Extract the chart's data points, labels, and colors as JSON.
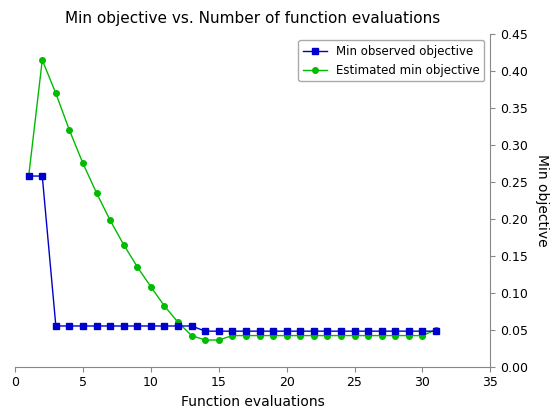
{
  "title": "Min objective vs. Number of function evaluations",
  "xlabel": "Function evaluations",
  "ylabel": "Min objective",
  "xlim": [
    0,
    35
  ],
  "ylim": [
    0,
    0.45
  ],
  "line1_label": "Min observed objective",
  "line1_color": "#0000cd",
  "line1_marker": "s",
  "line1_x": [
    1,
    2,
    3,
    4,
    5,
    6,
    7,
    8,
    9,
    10,
    11,
    12,
    13,
    14,
    15,
    16,
    17,
    18,
    19,
    20,
    21,
    22,
    23,
    24,
    25,
    26,
    27,
    28,
    29,
    30,
    31
  ],
  "line1_y": [
    0.258,
    0.258,
    0.055,
    0.055,
    0.055,
    0.055,
    0.055,
    0.055,
    0.055,
    0.055,
    0.055,
    0.055,
    0.055,
    0.048,
    0.048,
    0.048,
    0.048,
    0.048,
    0.048,
    0.048,
    0.048,
    0.048,
    0.048,
    0.048,
    0.048,
    0.048,
    0.048,
    0.048,
    0.048,
    0.048,
    0.048
  ],
  "line2_label": "Estimated min objective",
  "line2_color": "#00bb00",
  "line2_marker": "o",
  "line2_x": [
    1,
    2,
    3,
    4,
    5,
    6,
    7,
    8,
    9,
    10,
    11,
    12,
    13,
    14,
    15,
    16,
    17,
    18,
    19,
    20,
    21,
    22,
    23,
    24,
    25,
    26,
    27,
    28,
    29,
    30,
    31
  ],
  "line2_y": [
    0.258,
    0.415,
    0.37,
    0.32,
    0.275,
    0.235,
    0.198,
    0.165,
    0.135,
    0.108,
    0.082,
    0.06,
    0.042,
    0.036,
    0.036,
    0.042,
    0.042,
    0.042,
    0.042,
    0.042,
    0.042,
    0.042,
    0.042,
    0.042,
    0.042,
    0.042,
    0.042,
    0.042,
    0.042,
    0.042,
    0.05
  ],
  "yticks": [
    0,
    0.05,
    0.1,
    0.15,
    0.2,
    0.25,
    0.3,
    0.35,
    0.4,
    0.45
  ],
  "xticks": [
    0,
    5,
    10,
    15,
    20,
    25,
    30,
    35
  ],
  "background_color": "#ffffff",
  "legend_loc": "upper right",
  "title_fontsize": 11,
  "label_fontsize": 10,
  "tick_fontsize": 9,
  "linewidth": 1.0,
  "markersize": 4
}
